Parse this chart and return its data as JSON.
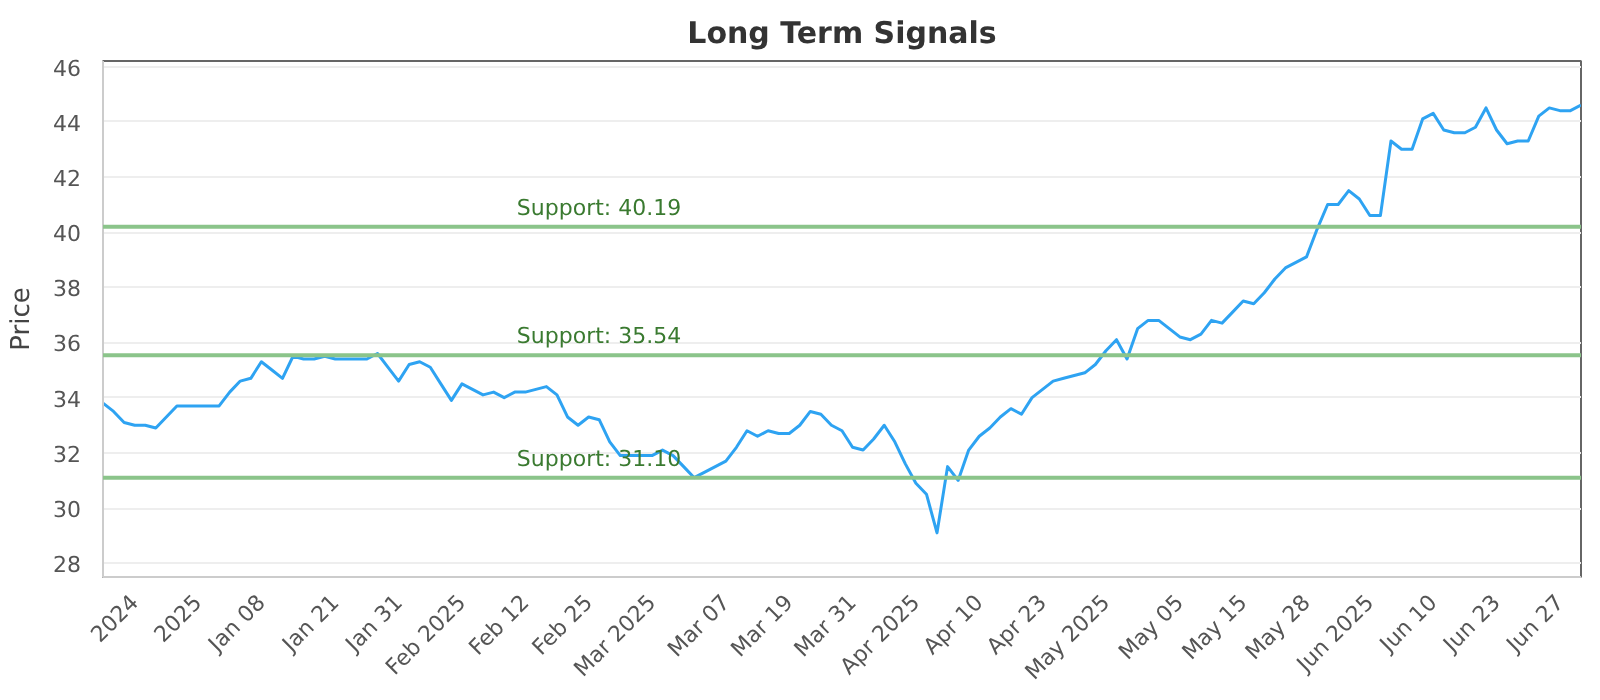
{
  "chart_data": {
    "type": "line",
    "title": "Long Term Signals",
    "ylabel": "Price",
    "categories": [
      null,
      null,
      null,
      "2024",
      null,
      null,
      null,
      null,
      null,
      "2025",
      null,
      null,
      null,
      null,
      null,
      "Jan 08",
      null,
      null,
      null,
      null,
      null,
      null,
      "Jan 21",
      null,
      null,
      null,
      null,
      null,
      "Jan 31",
      null,
      null,
      null,
      null,
      null,
      "Feb 2025",
      null,
      null,
      null,
      null,
      null,
      "Feb 12",
      null,
      null,
      null,
      null,
      null,
      "Feb 25",
      null,
      null,
      null,
      null,
      null,
      "Mar 2025",
      null,
      null,
      null,
      null,
      null,
      null,
      "Mar 07",
      null,
      null,
      null,
      null,
      null,
      "Mar 19",
      null,
      null,
      null,
      null,
      null,
      "Mar 31",
      null,
      null,
      null,
      null,
      null,
      "Apr 2025",
      null,
      null,
      null,
      null,
      null,
      "Apr 10",
      null,
      null,
      null,
      null,
      null,
      "Apr 23",
      null,
      null,
      null,
      null,
      null,
      "May 2025",
      null,
      null,
      null,
      null,
      null,
      null,
      "May 05",
      null,
      null,
      null,
      null,
      null,
      "May 15",
      null,
      null,
      null,
      null,
      null,
      "May 28",
      null,
      null,
      null,
      null,
      null,
      "Jun 2025",
      null,
      null,
      null,
      null,
      null,
      "Jun 10",
      null,
      null,
      null,
      null,
      null,
      "Jun 23",
      null,
      null,
      null,
      null,
      null,
      "Jun 27",
      null,
      null
    ],
    "series": [
      {
        "color": "#2ea3f2",
        "values": [
          33.8,
          33.5,
          33.1,
          33.0,
          33.0,
          32.9,
          33.3,
          33.7,
          33.7,
          33.7,
          33.7,
          33.7,
          34.2,
          34.6,
          34.7,
          35.3,
          35.0,
          34.7,
          35.5,
          35.4,
          35.4,
          35.5,
          35.4,
          35.4,
          35.4,
          35.4,
          35.6,
          35.1,
          34.6,
          35.2,
          35.3,
          35.1,
          34.5,
          33.9,
          34.5,
          34.3,
          34.1,
          34.2,
          34.0,
          34.2,
          34.2,
          34.3,
          34.4,
          34.1,
          33.3,
          33.0,
          33.3,
          33.2,
          32.4,
          31.9,
          31.9,
          31.9,
          31.9,
          32.1,
          31.9,
          31.5,
          31.1,
          31.3,
          31.5,
          31.7,
          32.2,
          32.8,
          32.6,
          32.8,
          32.7,
          32.7,
          33.0,
          33.5,
          33.4,
          33.0,
          32.8,
          32.2,
          32.1,
          32.5,
          33.0,
          32.4,
          31.6,
          30.9,
          30.5,
          29.1,
          31.5,
          31.0,
          32.1,
          32.6,
          32.9,
          33.3,
          33.6,
          33.4,
          34.0,
          34.3,
          34.6,
          34.7,
          34.8,
          34.9,
          35.2,
          35.7,
          36.1,
          35.4,
          36.5,
          36.8,
          36.8,
          36.5,
          36.2,
          36.1,
          36.3,
          36.8,
          36.7,
          37.1,
          37.5,
          37.4,
          37.8,
          38.3,
          38.7,
          38.9,
          39.1,
          40.1,
          41.0,
          41.0,
          41.5,
          41.2,
          40.6,
          40.6,
          43.3,
          43.0,
          43.0,
          44.1,
          44.3,
          43.7,
          43.6,
          43.6,
          43.8,
          44.5,
          43.7,
          43.2,
          43.3,
          43.3,
          44.2,
          44.5,
          44.4,
          44.4,
          44.6
        ]
      }
    ],
    "ylim": [
      27.5,
      46.2
    ],
    "yticks": [
      28,
      30,
      32,
      34,
      36,
      38,
      40,
      42,
      44,
      46
    ],
    "grid": "y",
    "marker": "none",
    "line_style": "solid",
    "ref_lines": [
      {
        "axis": "y",
        "value": 40.19,
        "label": "Support: 40.19",
        "color": "#8bc48a"
      },
      {
        "axis": "y",
        "value": 35.54,
        "label": "Support: 35.54",
        "color": "#8bc48a"
      },
      {
        "axis": "y",
        "value": 31.1,
        "label": "Support: 31.10",
        "color": "#8bc48a"
      }
    ]
  }
}
